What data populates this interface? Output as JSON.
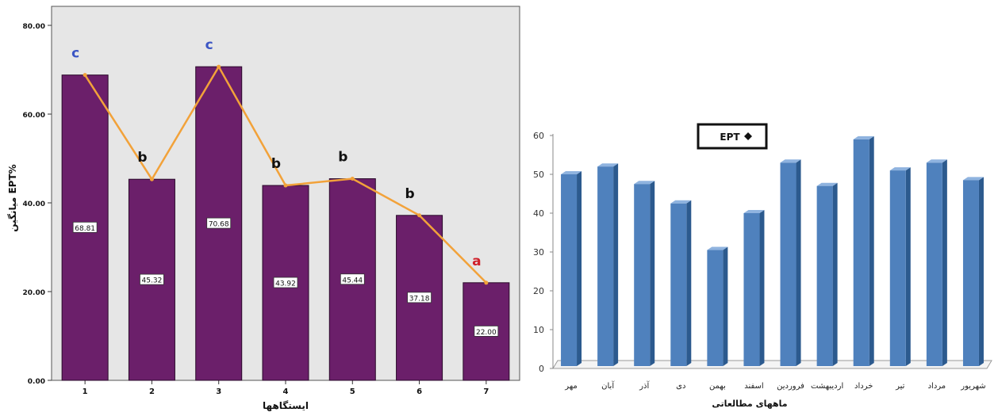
{
  "chart_data": [
    {
      "type": "bar",
      "ylabel": "میانگین EPT%",
      "xlabel": "ایستگاهها",
      "categories": [
        "1",
        "2",
        "3",
        "4",
        "5",
        "6",
        "7"
      ],
      "values": [
        68.81,
        45.32,
        70.68,
        43.92,
        45.44,
        37.18,
        22.0
      ],
      "value_labels": [
        "68.81",
        "45.32",
        "70.68",
        "43.92",
        "45.44",
        "37.18",
        "22.00"
      ],
      "yticks": [
        "0.00",
        "20.00",
        "40.00",
        "60.00",
        "80.00"
      ],
      "ylim": [
        0,
        80
      ],
      "letters": [
        "c",
        "b",
        "c",
        "b",
        "b",
        "b",
        "a"
      ],
      "letter_colors": {
        "a": "#d0202a",
        "b": "#111111",
        "c": "#3b55c4"
      },
      "bar_color": "#6b1f6a",
      "line_color": "#f2a23a",
      "plot_background": "#e6e6e6",
      "overlay_line": "connects bar tops"
    },
    {
      "type": "bar",
      "style": "3d",
      "legend_label": "EPT",
      "legend_position": "top-left",
      "xlabel": "ماههای مطالعاتی",
      "categories": [
        "مهر",
        "آبان",
        "آذر",
        "دی",
        "بهمن",
        "اسفند",
        "فروردین",
        "اردیبهشت",
        "خرداد",
        "تیر",
        "مرداد",
        "شهریور"
      ],
      "values": [
        50,
        52,
        47.5,
        42.5,
        30.5,
        40,
        53,
        47,
        59,
        51,
        53,
        48.5
      ],
      "yticks": [
        "0",
        "10",
        "20",
        "30",
        "40",
        "50",
        "60"
      ],
      "ylim": [
        0,
        60
      ],
      "bar_color": "#4f81bd",
      "bar_side_color": "#2c5a8e",
      "bar_top_color": "#8fb3df"
    }
  ]
}
